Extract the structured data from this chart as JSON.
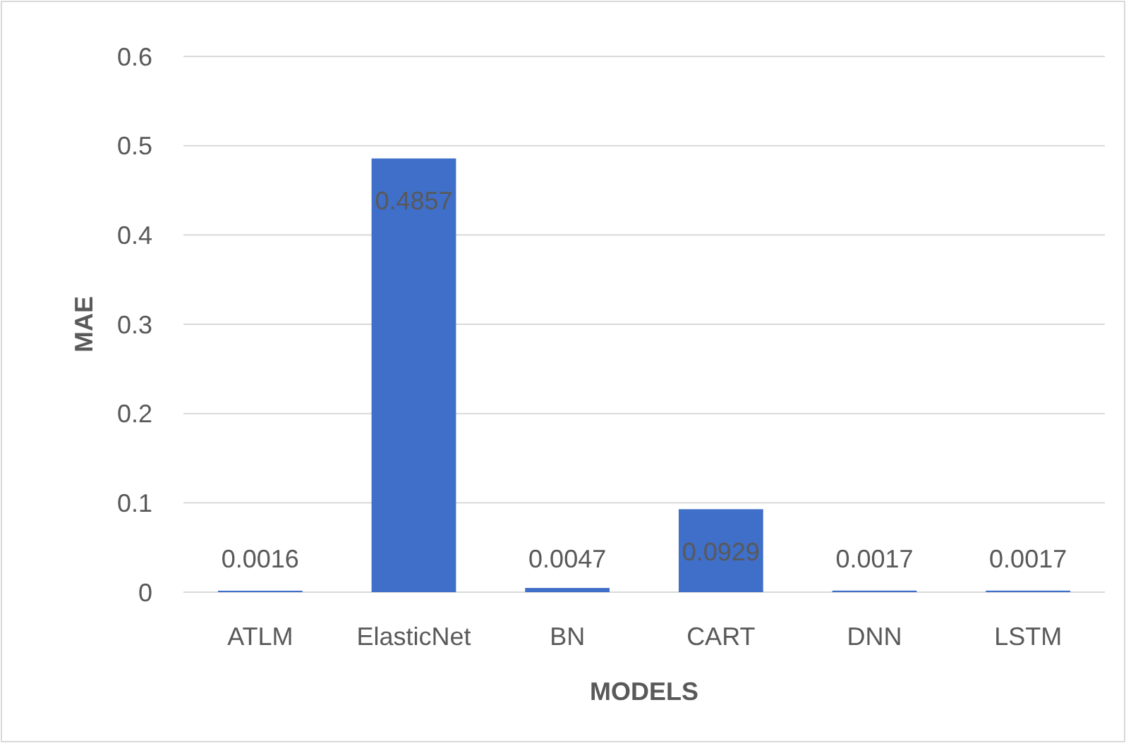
{
  "chart_data": {
    "type": "bar",
    "xlabel": "MODELS",
    "ylabel": "MAE",
    "categories": [
      "ATLM",
      "ElasticNet",
      "BN",
      "CART",
      "DNN",
      "LSTM"
    ],
    "values": [
      0.0016,
      0.4857,
      0.0047,
      0.0929,
      0.0017,
      0.0017
    ],
    "color": "#3f6fc9",
    "ylim": [
      0,
      0.6
    ],
    "yticks": [
      0,
      0.1,
      0.2,
      0.3,
      0.4,
      0.5,
      0.6
    ],
    "grid": "y",
    "data_labels": true
  }
}
